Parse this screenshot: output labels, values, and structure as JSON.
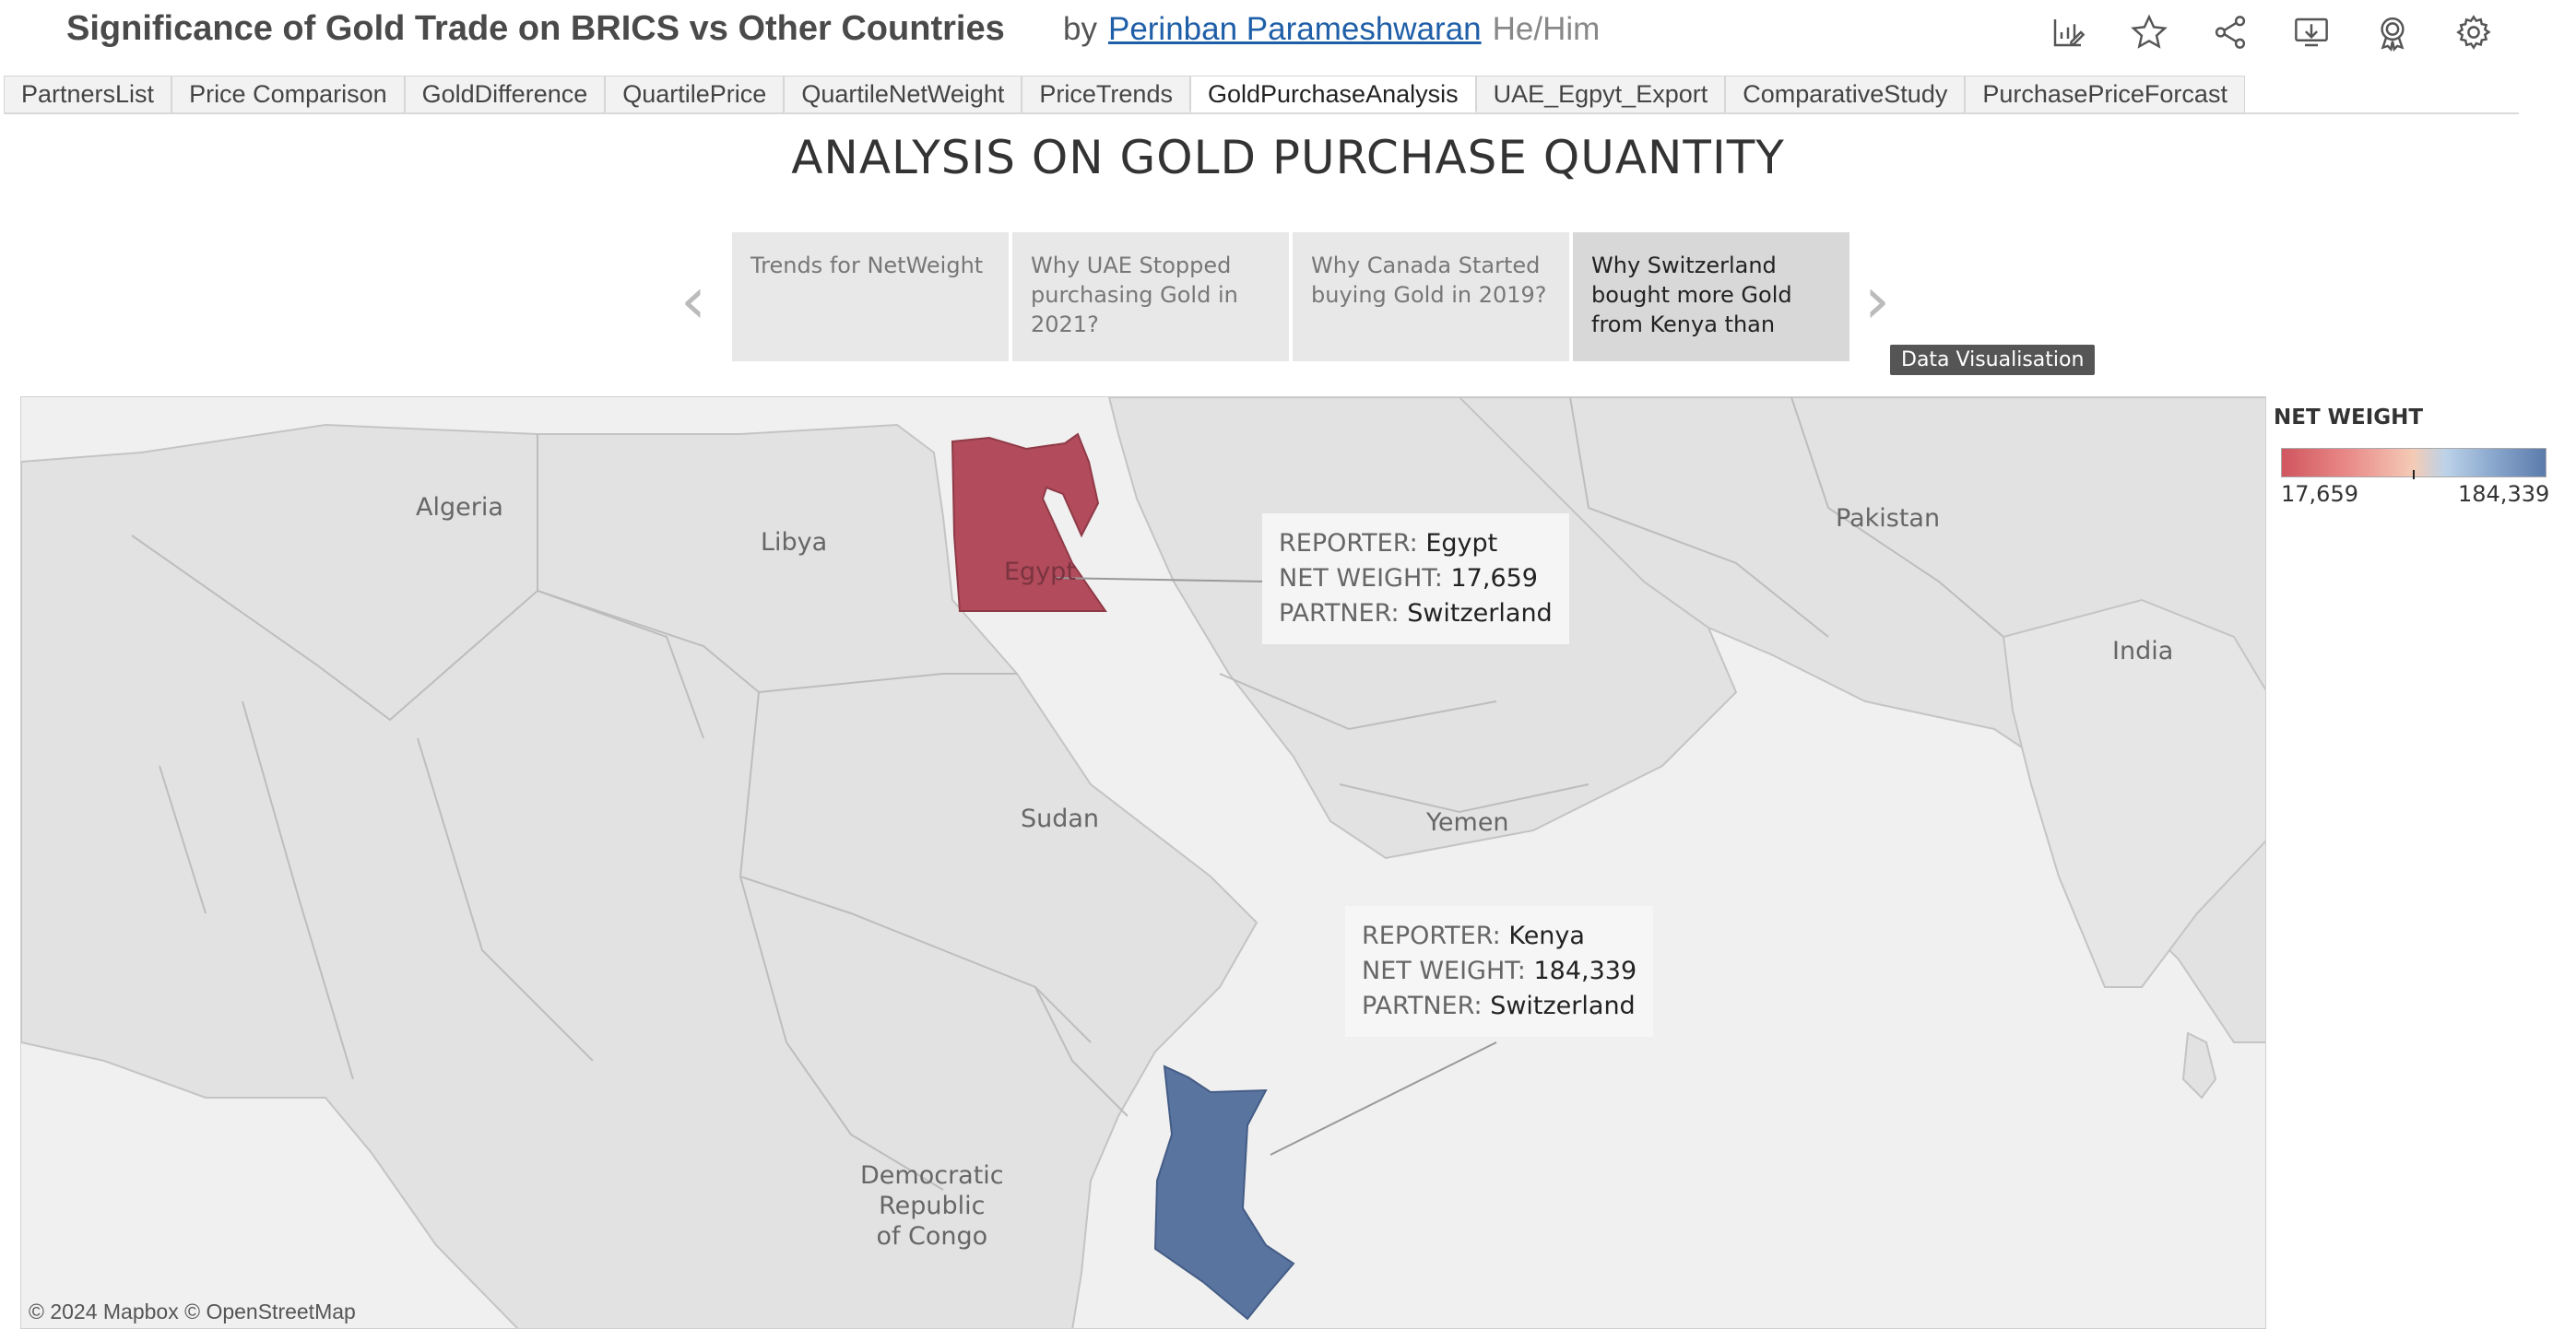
{
  "header": {
    "title": "Significance of Gold Trade on BRICS vs Other Countries",
    "by": "by",
    "author": "Perinban Parameshwaran",
    "pronoun": "He/Him",
    "toolbar_icons": [
      "edit-chart-icon",
      "star-icon",
      "share-icon",
      "download-icon",
      "badge-icon",
      "gear-icon"
    ]
  },
  "tabs": [
    {
      "label": "PartnersList",
      "active": false
    },
    {
      "label": "Price Comparison",
      "active": false
    },
    {
      "label": "GoldDifference",
      "active": false
    },
    {
      "label": "QuartilePrice",
      "active": false
    },
    {
      "label": "QuartileNetWeight",
      "active": false
    },
    {
      "label": "PriceTrends",
      "active": false
    },
    {
      "label": "GoldPurchaseAnalysis",
      "active": true
    },
    {
      "label": "UAE_Egpyt_Export",
      "active": false
    },
    {
      "label": "ComparativeStudy",
      "active": false
    },
    {
      "label": "PurchasePriceForcast",
      "active": false
    }
  ],
  "dashboard": {
    "title": "ANALYSIS ON GOLD PURCHASE QUANTITY"
  },
  "story": {
    "points": [
      {
        "text": "Trends for NetWeight",
        "active": false
      },
      {
        "text": "Why UAE Stopped purchasing Gold in 2021?",
        "active": false
      },
      {
        "text": "Why Canada Started buying Gold in 2019?",
        "active": false
      },
      {
        "text": "Why Switzerland bought more Gold from Kenya than",
        "active": true
      }
    ],
    "prev_icon": "chevron-left-icon",
    "next_icon": "chevron-right-icon",
    "hover_tooltip": "Data Visualisation"
  },
  "map": {
    "labels": {
      "algeria": "Algeria",
      "libya": "Libya",
      "egypt": "Egypt",
      "sudan": "Sudan",
      "yemen": "Yemen",
      "pakistan": "Pakistan",
      "india": "India",
      "drc": "Democratic\nRepublic\nof Congo"
    },
    "credit": "© 2024 Mapbox  © OpenStreetMap",
    "highlight_colors": {
      "egypt": "#b24b5b",
      "kenya": "#5a74a0"
    }
  },
  "tooltips": {
    "egypt": {
      "reporter_label": "REPORTER:",
      "reporter": "Egypt",
      "netweight_label": "NET WEIGHT:",
      "netweight": "17,659",
      "partner_label": "PARTNER:",
      "partner": "Switzerland"
    },
    "kenya": {
      "reporter_label": "REPORTER:",
      "reporter": "Kenya",
      "netweight_label": "NET WEIGHT:",
      "netweight": "184,339",
      "partner_label": "PARTNER:",
      "partner": "Switzerland"
    }
  },
  "legend": {
    "title": "NET WEIGHT",
    "min": "17,659",
    "max": "184,339",
    "low_color": "#d0565f",
    "high_color": "#5b7bab"
  }
}
